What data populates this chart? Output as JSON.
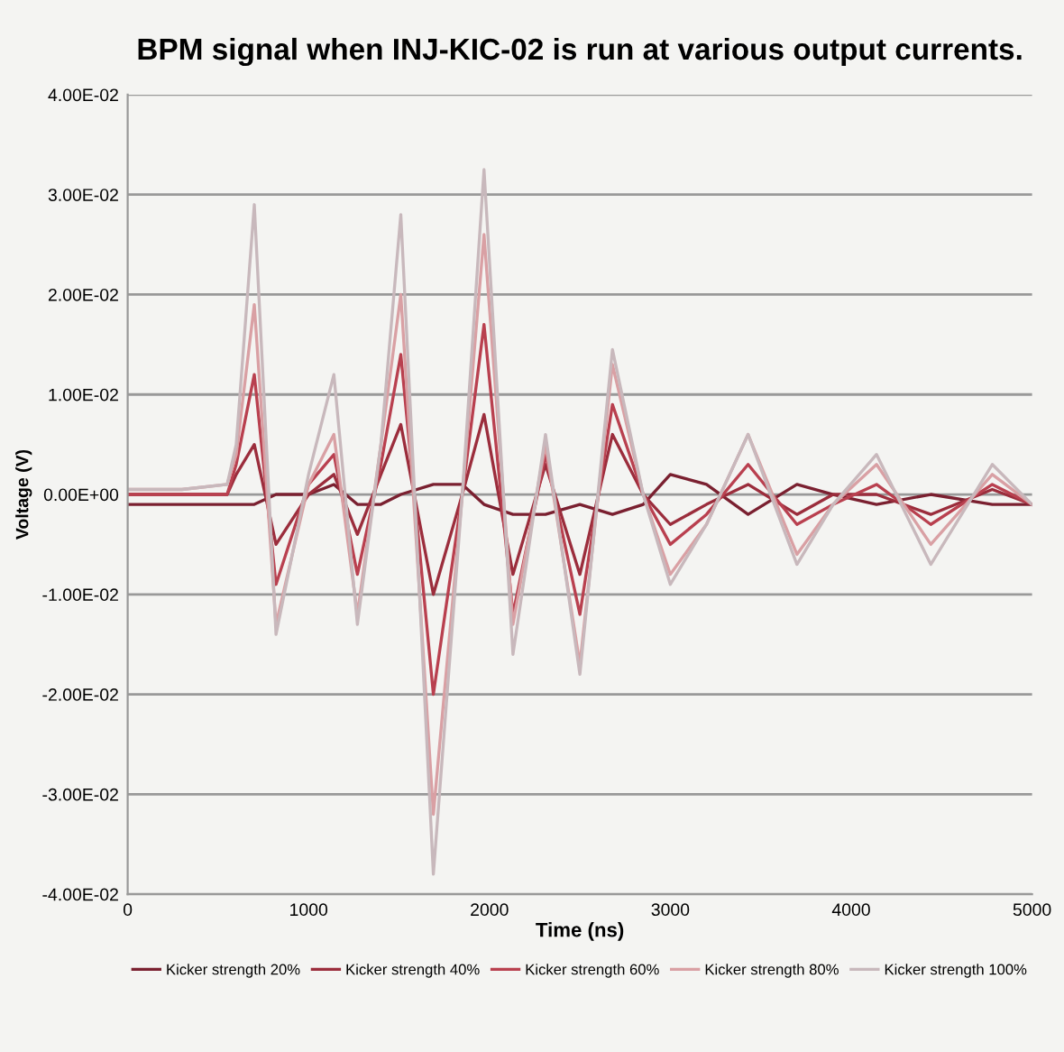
{
  "chart_data": {
    "type": "line",
    "title": "BPM signal when INJ-KIC-02 is run at various output currents.",
    "xlabel": "Time (ns)",
    "ylabel": "Voltage (V)",
    "x": [
      0,
      300,
      550,
      600,
      700,
      820,
      1000,
      1140,
      1270,
      1400,
      1510,
      1690,
      1850,
      1970,
      2130,
      2310,
      2500,
      2680,
      2850,
      3000,
      3200,
      3430,
      3700,
      3900,
      4140,
      4440,
      4780,
      5000
    ],
    "series": [
      {
        "name": "Kicker strength 20%",
        "color": "#7a2030",
        "values": [
          -0.001,
          -0.001,
          -0.001,
          -0.001,
          -0.001,
          0,
          0,
          0.001,
          -0.001,
          -0.001,
          0,
          0.001,
          0.001,
          -0.001,
          -0.002,
          -0.002,
          -0.001,
          -0.002,
          -0.001,
          0.002,
          0.001,
          -0.002,
          0.001,
          0,
          -0.001,
          0,
          -0.001,
          -0.001
        ]
      },
      {
        "name": "Kicker strength 40%",
        "color": "#9b2d3c",
        "values": [
          0,
          0,
          0,
          0.002,
          0.005,
          -0.005,
          0,
          0.002,
          -0.004,
          0.002,
          0.007,
          -0.01,
          0,
          0.008,
          -0.008,
          0.003,
          -0.008,
          0.006,
          0,
          -0.003,
          -0.001,
          0.001,
          -0.002,
          0,
          0,
          -0.002,
          0.0005,
          -0.001
        ]
      },
      {
        "name": "Kicker strength 60%",
        "color": "#b9404f",
        "values": [
          0,
          0,
          0,
          0.003,
          0.012,
          -0.009,
          0.001,
          0.004,
          -0.008,
          0.003,
          0.014,
          -0.02,
          0,
          0.017,
          -0.012,
          0.004,
          -0.012,
          0.009,
          0,
          -0.005,
          -0.002,
          0.003,
          -0.003,
          -0.001,
          0.001,
          -0.003,
          0.001,
          -0.001
        ]
      },
      {
        "name": "Kicker strength 80%",
        "color": "#d9a0a4",
        "values": [
          0.0005,
          0.0005,
          0.001,
          0.004,
          0.019,
          -0.013,
          0.001,
          0.006,
          -0.012,
          0.005,
          0.02,
          -0.032,
          0,
          0.026,
          -0.013,
          0.005,
          -0.017,
          0.013,
          0,
          -0.008,
          -0.003,
          0.006,
          -0.006,
          -0.001,
          0.003,
          -0.005,
          0.002,
          -0.001
        ]
      },
      {
        "name": "Kicker strength 100%",
        "color": "#c8b8bc",
        "values": [
          0.0005,
          0.0005,
          0.001,
          0.005,
          0.029,
          -0.014,
          0.002,
          0.012,
          -0.013,
          0.005,
          0.028,
          -0.038,
          0,
          0.0325,
          -0.016,
          0.006,
          -0.018,
          0.0145,
          0,
          -0.009,
          -0.003,
          0.006,
          -0.007,
          -0.001,
          0.004,
          -0.007,
          0.003,
          -0.001
        ]
      }
    ],
    "xlim": [
      0,
      5000
    ],
    "xticks": [
      0,
      1000,
      2000,
      3000,
      4000,
      5000
    ],
    "ylim": [
      -0.04,
      0.04
    ],
    "yticks": [
      {
        "value": -0.04,
        "label": "-4.00E-02"
      },
      {
        "value": -0.03,
        "label": "-3.00E-02"
      },
      {
        "value": -0.02,
        "label": "-2.00E-02"
      },
      {
        "value": -0.01,
        "label": "-1.00E-02"
      },
      {
        "value": 0,
        "label": "0.00E+00"
      },
      {
        "value": 0.01,
        "label": "1.00E-02"
      },
      {
        "value": 0.02,
        "label": "2.00E-02"
      },
      {
        "value": 0.03,
        "label": "3.00E-02"
      },
      {
        "value": 0.04,
        "label": "4.00E-02"
      }
    ],
    "grid": "y",
    "legend": "bottom",
    "marker": "none",
    "line_style": "solid"
  }
}
